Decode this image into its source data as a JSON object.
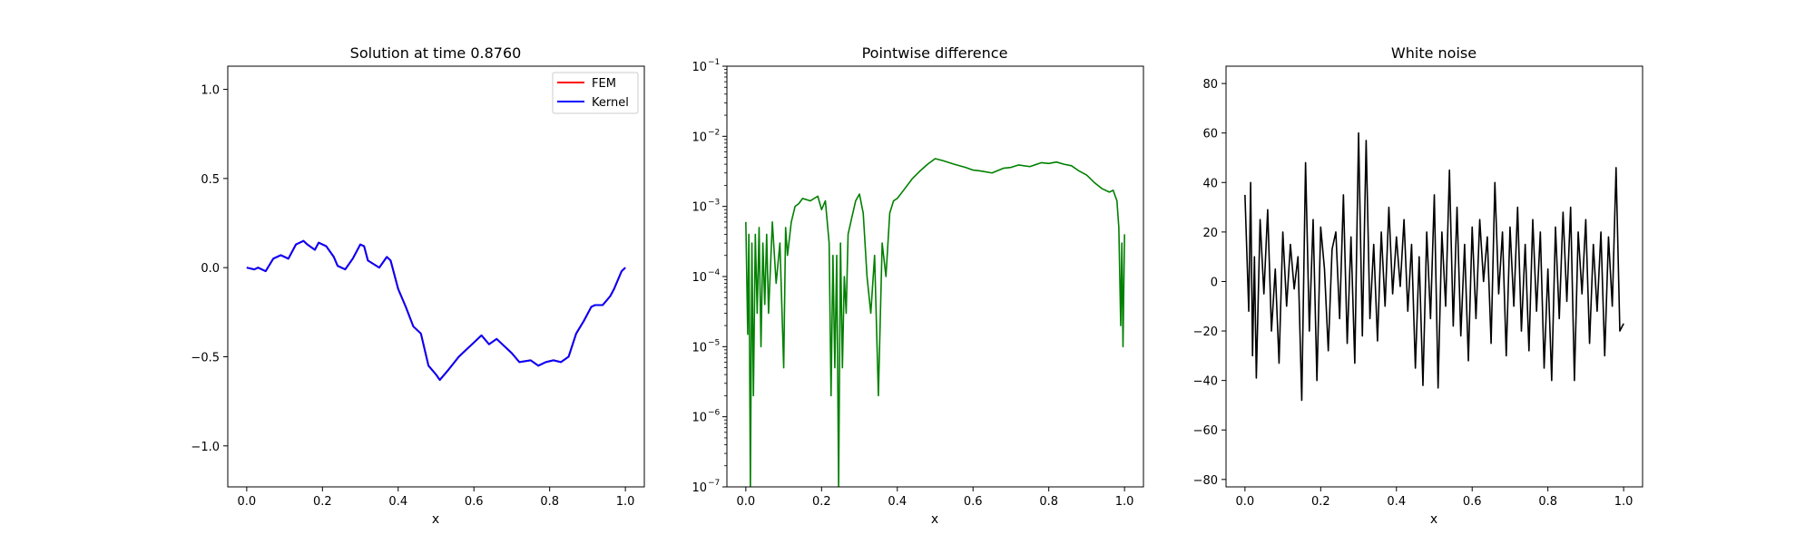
{
  "figure": {
    "background": "#ffffff"
  },
  "chart_data": [
    {
      "type": "line",
      "title": "Solution at time 0.8760",
      "xlabel": "x",
      "ylabel": "",
      "xlim": [
        -0.05,
        1.05
      ],
      "ylim": [
        -1.23,
        1.13
      ],
      "yscale": "linear",
      "grid": false,
      "legend_placement": "top-right",
      "x_ticks": [
        0.0,
        0.2,
        0.4,
        0.6,
        0.8,
        1.0
      ],
      "x_tick_labels": [
        "0.0",
        "0.2",
        "0.4",
        "0.6",
        "0.8",
        "1.0"
      ],
      "y_ticks": [
        -1.0,
        -0.5,
        0.0,
        0.5,
        1.0
      ],
      "y_tick_labels": [
        "−1.0",
        "−0.5",
        "0.0",
        "0.5",
        "1.0"
      ],
      "series": [
        {
          "name": "FEM",
          "color": "#ff0000",
          "x": [
            0.0,
            0.02,
            0.03,
            0.05,
            0.07,
            0.09,
            0.11,
            0.13,
            0.15,
            0.16,
            0.18,
            0.19,
            0.21,
            0.23,
            0.24,
            0.26,
            0.28,
            0.3,
            0.31,
            0.32,
            0.35,
            0.37,
            0.38,
            0.4,
            0.42,
            0.44,
            0.46,
            0.48,
            0.5,
            0.51,
            0.53,
            0.56,
            0.59,
            0.61,
            0.62,
            0.64,
            0.66,
            0.68,
            0.7,
            0.72,
            0.75,
            0.77,
            0.79,
            0.81,
            0.83,
            0.85,
            0.87,
            0.89,
            0.91,
            0.92,
            0.94,
            0.96,
            0.97,
            0.99,
            1.0
          ],
          "values": [
            0.0,
            -0.01,
            0.0,
            -0.02,
            0.05,
            0.07,
            0.05,
            0.13,
            0.15,
            0.13,
            0.1,
            0.14,
            0.12,
            0.06,
            0.01,
            -0.01,
            0.05,
            0.13,
            0.12,
            0.04,
            0.0,
            0.06,
            0.04,
            -0.12,
            -0.22,
            -0.33,
            -0.37,
            -0.55,
            -0.6,
            -0.63,
            -0.58,
            -0.5,
            -0.44,
            -0.4,
            -0.38,
            -0.43,
            -0.4,
            -0.44,
            -0.48,
            -0.53,
            -0.52,
            -0.55,
            -0.53,
            -0.52,
            -0.53,
            -0.5,
            -0.37,
            -0.3,
            -0.22,
            -0.21,
            -0.21,
            -0.16,
            -0.12,
            -0.02,
            0.0
          ]
        },
        {
          "name": "Kernel",
          "color": "#0000ff",
          "x": [
            0.0,
            0.02,
            0.03,
            0.05,
            0.07,
            0.09,
            0.11,
            0.13,
            0.15,
            0.16,
            0.18,
            0.19,
            0.21,
            0.23,
            0.24,
            0.26,
            0.28,
            0.3,
            0.31,
            0.32,
            0.35,
            0.37,
            0.38,
            0.4,
            0.42,
            0.44,
            0.46,
            0.48,
            0.5,
            0.51,
            0.53,
            0.56,
            0.59,
            0.61,
            0.62,
            0.64,
            0.66,
            0.68,
            0.7,
            0.72,
            0.75,
            0.77,
            0.79,
            0.81,
            0.83,
            0.85,
            0.87,
            0.89,
            0.91,
            0.92,
            0.94,
            0.96,
            0.97,
            0.99,
            1.0
          ],
          "values": [
            0.0,
            -0.01,
            0.0,
            -0.02,
            0.05,
            0.07,
            0.05,
            0.13,
            0.15,
            0.13,
            0.1,
            0.14,
            0.12,
            0.06,
            0.01,
            -0.01,
            0.05,
            0.13,
            0.12,
            0.04,
            0.0,
            0.06,
            0.04,
            -0.12,
            -0.22,
            -0.33,
            -0.37,
            -0.55,
            -0.6,
            -0.63,
            -0.58,
            -0.5,
            -0.44,
            -0.4,
            -0.38,
            -0.43,
            -0.4,
            -0.44,
            -0.48,
            -0.53,
            -0.52,
            -0.55,
            -0.53,
            -0.52,
            -0.53,
            -0.5,
            -0.37,
            -0.3,
            -0.22,
            -0.21,
            -0.21,
            -0.16,
            -0.12,
            -0.02,
            0.0
          ]
        }
      ]
    },
    {
      "type": "line",
      "title": "Pointwise difference",
      "xlabel": "x",
      "ylabel": "",
      "xlim": [
        -0.05,
        1.05
      ],
      "ylim": [
        1e-07,
        0.1
      ],
      "yscale": "log",
      "grid": false,
      "x_ticks": [
        0.0,
        0.2,
        0.4,
        0.6,
        0.8,
        1.0
      ],
      "x_tick_labels": [
        "0.0",
        "0.2",
        "0.4",
        "0.6",
        "0.8",
        "1.0"
      ],
      "y_ticks": [
        1e-07,
        1e-06,
        1e-05,
        0.0001,
        0.001,
        0.01,
        0.1
      ],
      "y_tick_labels": [
        "10",
        "10",
        "10",
        "10",
        "10",
        "10",
        "10"
      ],
      "y_tick_exponents": [
        "−7",
        "−6",
        "−5",
        "−4",
        "−3",
        "−2",
        "−1"
      ],
      "series": [
        {
          "color": "#008000",
          "x": [
            0.0,
            0.005,
            0.008,
            0.012,
            0.016,
            0.02,
            0.025,
            0.03,
            0.035,
            0.04,
            0.045,
            0.05,
            0.055,
            0.06,
            0.07,
            0.08,
            0.09,
            0.1,
            0.105,
            0.11,
            0.12,
            0.13,
            0.14,
            0.15,
            0.17,
            0.19,
            0.2,
            0.21,
            0.22,
            0.225,
            0.23,
            0.235,
            0.24,
            0.245,
            0.25,
            0.255,
            0.26,
            0.265,
            0.27,
            0.28,
            0.29,
            0.3,
            0.31,
            0.32,
            0.33,
            0.34,
            0.35,
            0.36,
            0.37,
            0.38,
            0.39,
            0.4,
            0.42,
            0.44,
            0.46,
            0.48,
            0.5,
            0.52,
            0.55,
            0.58,
            0.6,
            0.62,
            0.65,
            0.68,
            0.7,
            0.72,
            0.75,
            0.78,
            0.8,
            0.82,
            0.84,
            0.86,
            0.88,
            0.9,
            0.92,
            0.94,
            0.96,
            0.97,
            0.98,
            0.985,
            0.99,
            0.993,
            0.996,
            1.0
          ],
          "values": [
            0.0006,
            1.5e-05,
            0.0004,
            1e-07,
            0.0003,
            2e-06,
            0.0004,
            3e-05,
            0.0005,
            1e-05,
            0.0003,
            4e-05,
            0.0004,
            3e-05,
            0.0006,
            8e-05,
            0.0003,
            5e-06,
            0.0005,
            0.0002,
            0.0006,
            0.001,
            0.0011,
            0.0013,
            0.0012,
            0.0014,
            0.0009,
            0.0012,
            0.0003,
            2e-06,
            0.0002,
            5e-06,
            0.0002,
            1e-07,
            0.0003,
            5e-06,
            0.0001,
            3e-05,
            0.0004,
            0.0007,
            0.0012,
            0.0015,
            0.0008,
            0.0001,
            3e-05,
            0.0002,
            2e-06,
            0.0003,
            0.0001,
            0.0008,
            0.0012,
            0.0013,
            0.0018,
            0.0025,
            0.0032,
            0.004,
            0.0048,
            0.0045,
            0.004,
            0.0036,
            0.0033,
            0.0032,
            0.003,
            0.0035,
            0.0036,
            0.0039,
            0.0037,
            0.0042,
            0.0041,
            0.0043,
            0.004,
            0.0038,
            0.0032,
            0.0028,
            0.0022,
            0.0018,
            0.0016,
            0.0017,
            0.0012,
            0.0005,
            2e-05,
            0.0003,
            1e-05,
            0.0004
          ]
        }
      ]
    },
    {
      "type": "line",
      "title": "White noise",
      "xlabel": "x",
      "ylabel": "",
      "xlim": [
        -0.05,
        1.05
      ],
      "ylim": [
        -83,
        87
      ],
      "yscale": "linear",
      "grid": false,
      "x_ticks": [
        0.0,
        0.2,
        0.4,
        0.6,
        0.8,
        1.0
      ],
      "x_tick_labels": [
        "0.0",
        "0.2",
        "0.4",
        "0.6",
        "0.8",
        "1.0"
      ],
      "y_ticks": [
        -80,
        -60,
        -40,
        -20,
        0,
        20,
        40,
        60,
        80
      ],
      "y_tick_labels": [
        "−80",
        "−60",
        "−40",
        "−20",
        "0",
        "20",
        "40",
        "60",
        "80"
      ],
      "series": [
        {
          "color": "#000000",
          "x": [
            0.0,
            0.01,
            0.015,
            0.02,
            0.025,
            0.03,
            0.04,
            0.05,
            0.06,
            0.07,
            0.08,
            0.09,
            0.1,
            0.11,
            0.12,
            0.13,
            0.14,
            0.15,
            0.16,
            0.17,
            0.18,
            0.19,
            0.2,
            0.21,
            0.22,
            0.23,
            0.24,
            0.25,
            0.26,
            0.27,
            0.28,
            0.29,
            0.3,
            0.31,
            0.32,
            0.33,
            0.34,
            0.35,
            0.36,
            0.37,
            0.38,
            0.39,
            0.4,
            0.41,
            0.42,
            0.43,
            0.44,
            0.45,
            0.46,
            0.47,
            0.48,
            0.49,
            0.5,
            0.51,
            0.52,
            0.53,
            0.54,
            0.55,
            0.56,
            0.57,
            0.58,
            0.59,
            0.6,
            0.61,
            0.62,
            0.63,
            0.64,
            0.65,
            0.66,
            0.67,
            0.68,
            0.69,
            0.7,
            0.71,
            0.72,
            0.73,
            0.74,
            0.75,
            0.76,
            0.77,
            0.78,
            0.79,
            0.8,
            0.81,
            0.82,
            0.83,
            0.84,
            0.85,
            0.86,
            0.87,
            0.88,
            0.89,
            0.9,
            0.91,
            0.92,
            0.93,
            0.94,
            0.95,
            0.96,
            0.97,
            0.98,
            0.99,
            1.0
          ],
          "values": [
            35,
            -12,
            40,
            -30,
            10,
            -39,
            25,
            -5,
            29,
            -20,
            5,
            -33,
            20,
            -10,
            15,
            -3,
            10,
            -48,
            48,
            -20,
            25,
            -40,
            22,
            5,
            -28,
            13,
            20,
            -15,
            35,
            -25,
            18,
            -33,
            60,
            -22,
            57,
            -15,
            15,
            -24,
            20,
            -10,
            30,
            -5,
            18,
            -2,
            25,
            -12,
            15,
            -35,
            10,
            -42,
            20,
            -15,
            35,
            -43,
            20,
            -10,
            45,
            -18,
            30,
            -22,
            15,
            -32,
            22,
            -15,
            25,
            0,
            18,
            -25,
            40,
            -5,
            20,
            -30,
            22,
            -10,
            30,
            -20,
            15,
            -28,
            25,
            -12,
            20,
            -35,
            5,
            -40,
            22,
            -15,
            28,
            -8,
            30,
            -40,
            20,
            -5,
            25,
            -25,
            15,
            -12,
            20,
            -30,
            18,
            -10,
            46,
            -20,
            -17
          ]
        }
      ]
    }
  ]
}
